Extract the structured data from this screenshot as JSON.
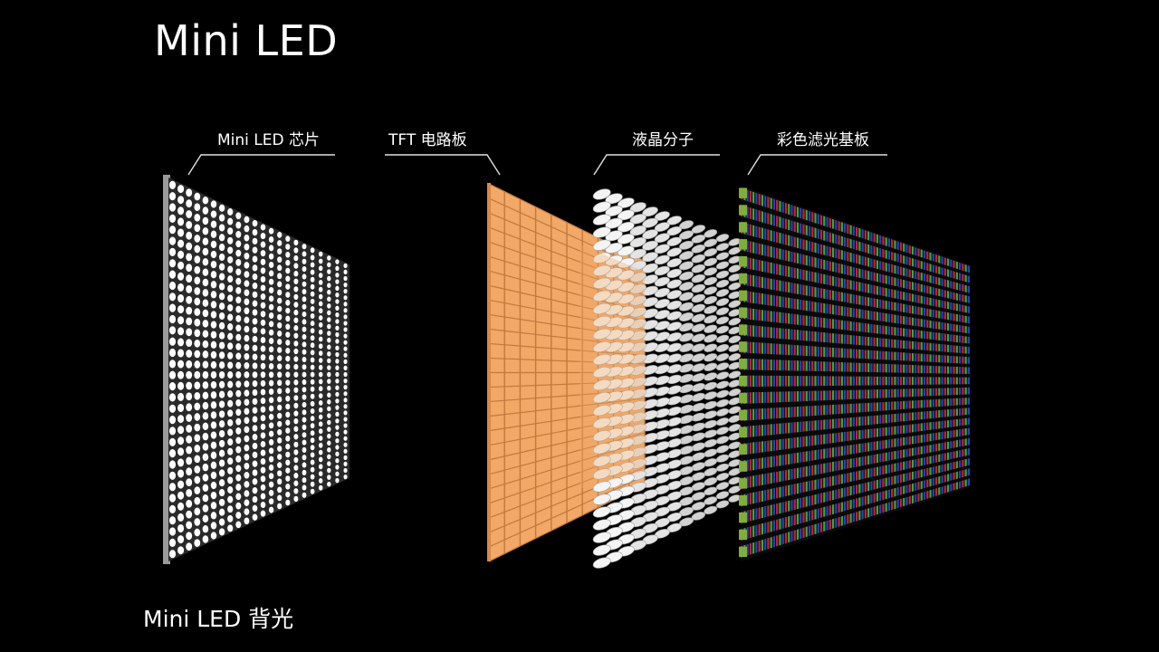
{
  "title": "Mini LED",
  "caption": "Mini LED 背光",
  "layers": [
    {
      "label": "Mini LED 芯片",
      "kind": "led-chip-array"
    },
    {
      "label": "TFT 电路板",
      "kind": "tft-circuit-board"
    },
    {
      "label": "液晶分子",
      "kind": "liquid-crystal-molecules"
    },
    {
      "label": "彩色滤光基板",
      "kind": "color-filter-substrate"
    }
  ],
  "colors": {
    "background": "#000000",
    "text": "#ffffff",
    "led": "#ffffff",
    "led_frame": "#9a9a9a",
    "tft": "#f2a866",
    "tft_grid": "#c07a3e",
    "filter_red": "#d21e2a",
    "filter_green": "#2fae3e",
    "filter_blue": "#2640c8",
    "filter_edge_green": "#7fae3c"
  }
}
